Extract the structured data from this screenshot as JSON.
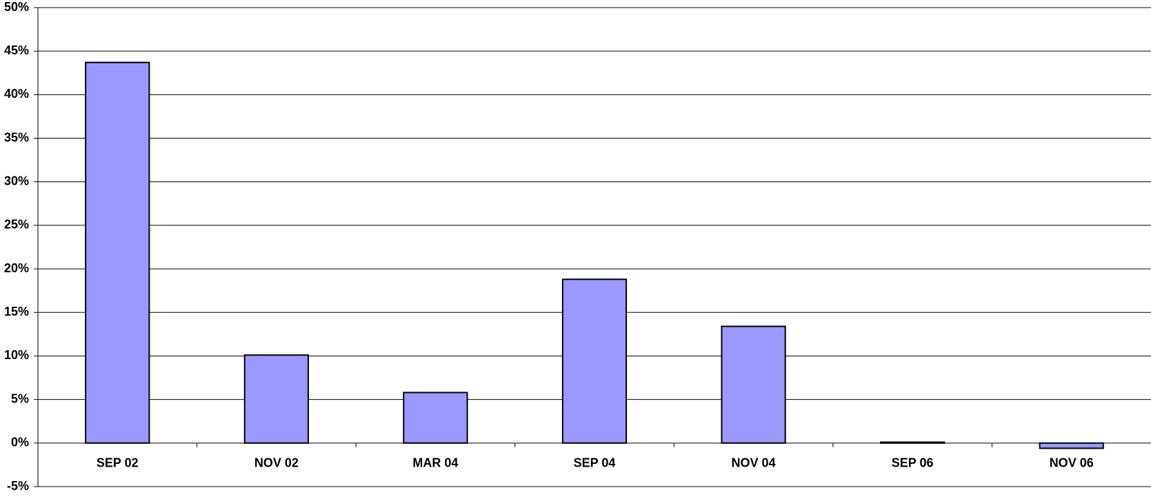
{
  "chart_data": {
    "type": "bar",
    "categories": [
      "SEP 02",
      "NOV 02",
      "MAR 04",
      "SEP 04",
      "NOV 04",
      "SEP 06",
      "NOV 06"
    ],
    "values": [
      43.7,
      10.1,
      5.8,
      18.8,
      13.4,
      0.1,
      -0.6
    ],
    "color": "#9999ff",
    "ylim": [
      -5,
      50
    ],
    "yticks": [
      {
        "value": -5,
        "label": "-5%"
      },
      {
        "value": 0,
        "label": "0%"
      },
      {
        "value": 5,
        "label": "5%"
      },
      {
        "value": 10,
        "label": "10%"
      },
      {
        "value": 15,
        "label": "15%"
      },
      {
        "value": 20,
        "label": "20%"
      },
      {
        "value": 25,
        "label": "25%"
      },
      {
        "value": 30,
        "label": "30%"
      },
      {
        "value": 35,
        "label": "35%"
      },
      {
        "value": 40,
        "label": "40%"
      },
      {
        "value": 45,
        "label": "45%"
      },
      {
        "value": 50,
        "label": "50%"
      }
    ],
    "grid": true
  }
}
